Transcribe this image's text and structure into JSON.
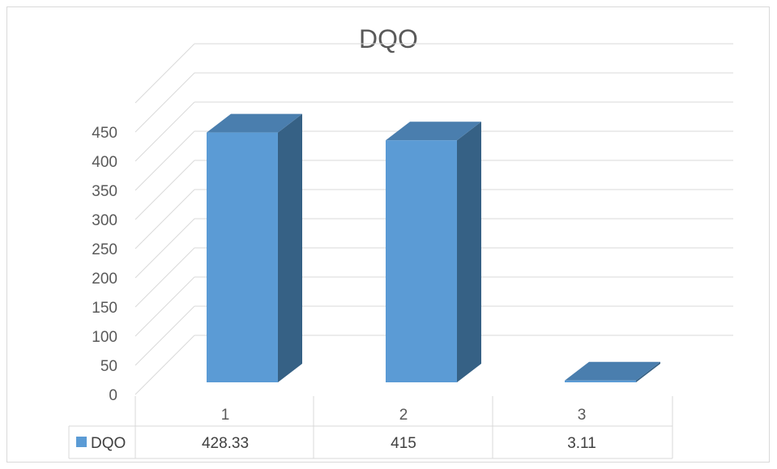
{
  "chart_data": {
    "type": "bar",
    "title": "DQO",
    "categories": [
      "1",
      "2",
      "3"
    ],
    "series": [
      {
        "name": "DQO",
        "values": [
          428.33,
          415,
          3.11
        ],
        "value_labels": [
          "428.33",
          "415",
          "3.11"
        ]
      }
    ],
    "y_ticks": [
      "0",
      "50",
      "100",
      "150",
      "200",
      "250",
      "300",
      "350",
      "400",
      "450"
    ],
    "ylim": [
      0,
      450
    ],
    "grid": true,
    "style": "3d-column",
    "legend": "data-table-below",
    "colors": {
      "front": "#5b9bd5",
      "top": "#4a7eae",
      "side": "#366185",
      "grid": "#d9d9d9"
    }
  }
}
